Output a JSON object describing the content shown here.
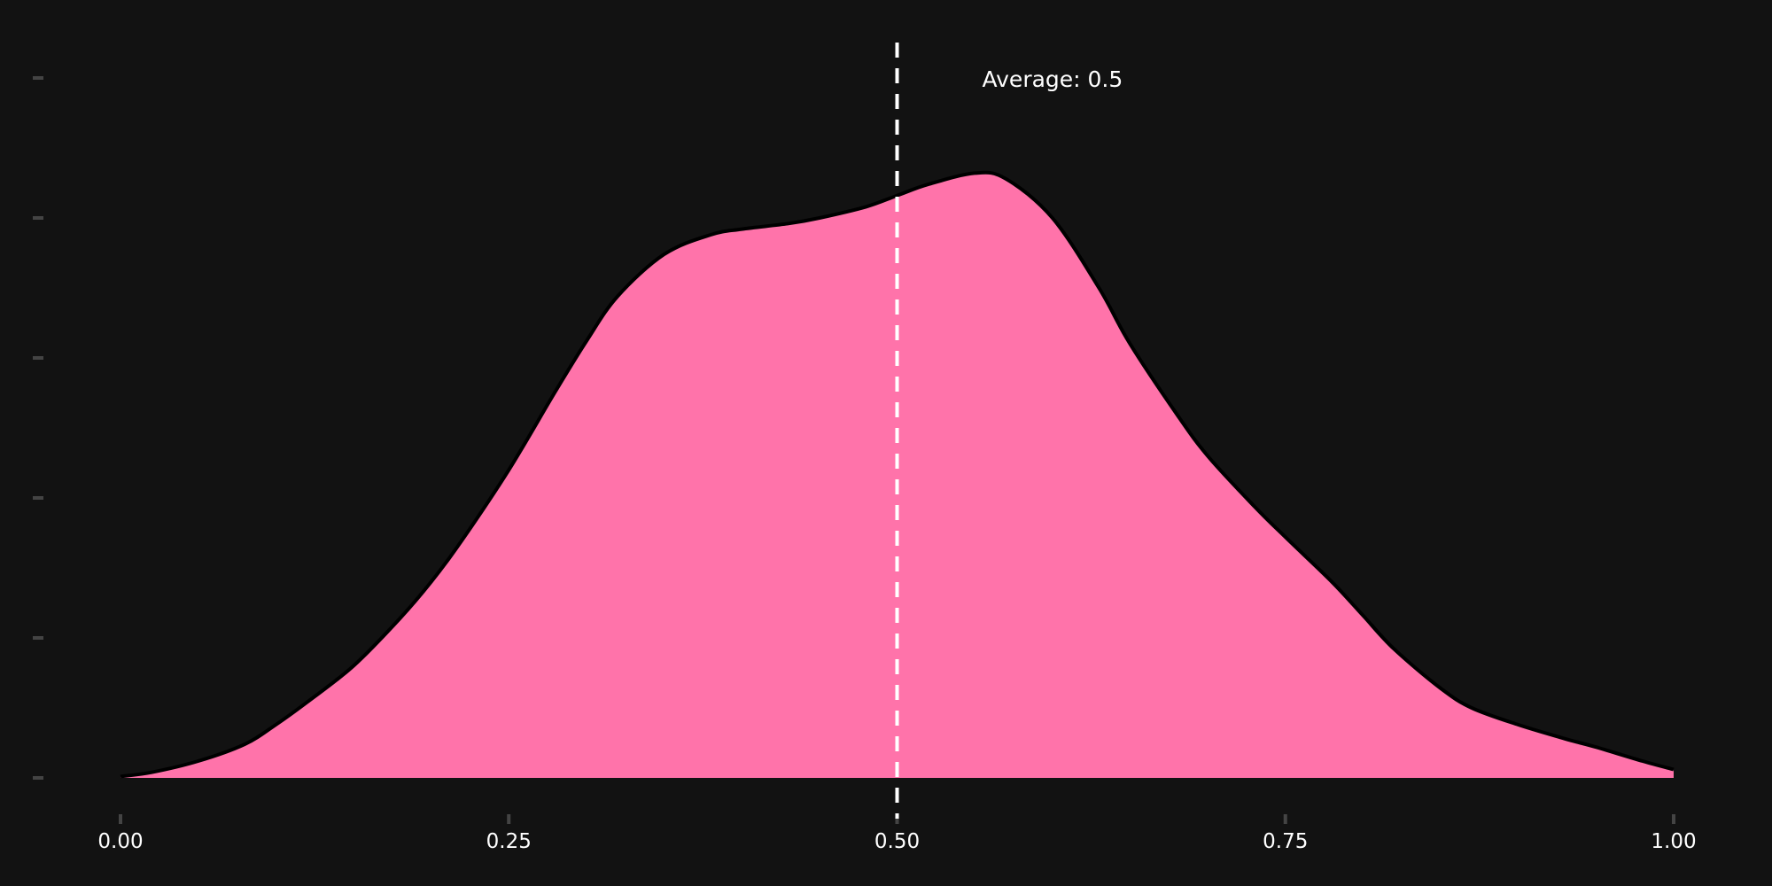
{
  "chart_data": {
    "type": "area",
    "title": "",
    "xlabel": "",
    "ylabel": "",
    "xlim": [
      0,
      1
    ],
    "ylim": [
      0,
      2.5
    ],
    "x_ticks": [
      "0.00",
      "0.25",
      "0.50",
      "0.75",
      "1.00"
    ],
    "x_tick_values": [
      0,
      0.25,
      0.5,
      0.75,
      1
    ],
    "y_tick_values": [
      0,
      0.5,
      1.0,
      1.5,
      2.0,
      2.5
    ],
    "y_tick_labels_visible": false,
    "grid": false,
    "series": [
      {
        "x": [
          0.0,
          0.02,
          0.05,
          0.08,
          0.1,
          0.12,
          0.15,
          0.18,
          0.2,
          0.22,
          0.25,
          0.28,
          0.3,
          0.32,
          0.35,
          0.38,
          0.4,
          0.43,
          0.45,
          0.48,
          0.5,
          0.52,
          0.55,
          0.57,
          0.6,
          0.63,
          0.65,
          0.68,
          0.7,
          0.73,
          0.75,
          0.78,
          0.8,
          0.82,
          0.85,
          0.87,
          0.9,
          0.93,
          0.95,
          0.98,
          1.0
        ],
        "y": [
          0.005,
          0.02,
          0.06,
          0.12,
          0.19,
          0.27,
          0.4,
          0.57,
          0.7,
          0.85,
          1.1,
          1.38,
          1.56,
          1.72,
          1.87,
          1.94,
          1.96,
          1.98,
          2.0,
          2.04,
          2.08,
          2.12,
          2.16,
          2.14,
          2.0,
          1.75,
          1.55,
          1.3,
          1.15,
          0.97,
          0.86,
          0.7,
          0.58,
          0.46,
          0.32,
          0.25,
          0.19,
          0.14,
          0.11,
          0.06,
          0.03
        ]
      }
    ],
    "reference_line": {
      "x": 0.5,
      "label": "Average: 0.5"
    },
    "colors": {
      "fill": "#ff73aa",
      "outline": "#000000",
      "background": "#121212",
      "reference_line": "#ffffff",
      "tick_mark": "#444444"
    }
  }
}
